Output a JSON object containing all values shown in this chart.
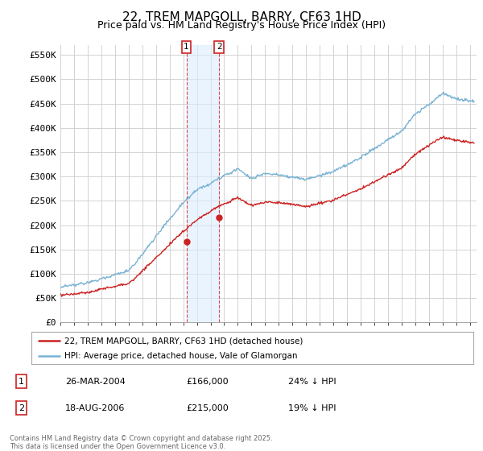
{
  "title": "22, TREM MAPGOLL, BARRY, CF63 1HD",
  "subtitle": "Price paid vs. HM Land Registry's House Price Index (HPI)",
  "ylabel_ticks": [
    "£0",
    "£50K",
    "£100K",
    "£150K",
    "£200K",
    "£250K",
    "£300K",
    "£350K",
    "£400K",
    "£450K",
    "£500K",
    "£550K"
  ],
  "ytick_vals": [
    0,
    50000,
    100000,
    150000,
    200000,
    250000,
    300000,
    350000,
    400000,
    450000,
    500000,
    550000
  ],
  "ylim": [
    0,
    570000
  ],
  "xlim_start": 1995.0,
  "xlim_end": 2025.5,
  "hpi_color": "#7ab3d4",
  "price_color": "#cc2222",
  "transaction1_date": 2004.23,
  "transaction1_price": 166000,
  "transaction2_date": 2006.63,
  "transaction2_price": 215000,
  "legend_label1": "22, TREM MAPGOLL, BARRY, CF63 1HD (detached house)",
  "legend_label2": "HPI: Average price, detached house, Vale of Glamorgan",
  "table_row1": [
    "1",
    "26-MAR-2004",
    "£166,000",
    "24% ↓ HPI"
  ],
  "table_row2": [
    "2",
    "18-AUG-2006",
    "£215,000",
    "19% ↓ HPI"
  ],
  "footnote": "Contains HM Land Registry data © Crown copyright and database right 2025.\nThis data is licensed under the Open Government Licence v3.0.",
  "title_fontsize": 11,
  "subtitle_fontsize": 9,
  "axis_fontsize": 8,
  "background_color": "#ffffff"
}
